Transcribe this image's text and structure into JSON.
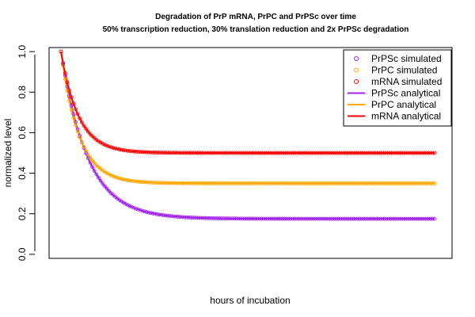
{
  "chart_data": {
    "type": "line",
    "title": "Degradation of PrP mRNA, PrPC and PrPSc over time",
    "subtitle": "50% transcription reduction, 30% translation reduction and 2x PrPSc degradation",
    "xlabel": "hours of incubation",
    "ylabel": "normalized level",
    "ylim": [
      -0.02,
      1.02
    ],
    "yticks": [
      "0.0",
      "0.2",
      "0.4",
      "0.6",
      "0.8",
      "1.0"
    ],
    "ytick_values": [
      0.0,
      0.2,
      0.4,
      0.6,
      0.8,
      1.0
    ],
    "grid": false,
    "legend_position": "top-right",
    "series": [
      {
        "name": "PrPSc simulated",
        "kind": "points",
        "color": "#a020f0",
        "start": 1.0,
        "plateau": 0.175,
        "rate": 0.078
      },
      {
        "name": "PrPC simulated",
        "kind": "points",
        "color": "#ffa500",
        "start": 1.0,
        "plateau": 0.35,
        "rate": 0.117
      },
      {
        "name": "mRNA simulated",
        "kind": "points",
        "color": "#ff0000",
        "start": 1.0,
        "plateau": 0.5,
        "rate": 0.12
      },
      {
        "name": "PrPSc analytical",
        "kind": "line",
        "color": "#a020f0",
        "start": 1.0,
        "plateau": 0.175,
        "rate": 0.078
      },
      {
        "name": "PrPC analytical",
        "kind": "line",
        "color": "#ffa500",
        "start": 1.0,
        "plateau": 0.35,
        "rate": 0.117
      },
      {
        "name": "mRNA analytical",
        "kind": "line",
        "color": "#ff0000",
        "start": 1.0,
        "plateau": 0.5,
        "rate": 0.12
      }
    ]
  }
}
